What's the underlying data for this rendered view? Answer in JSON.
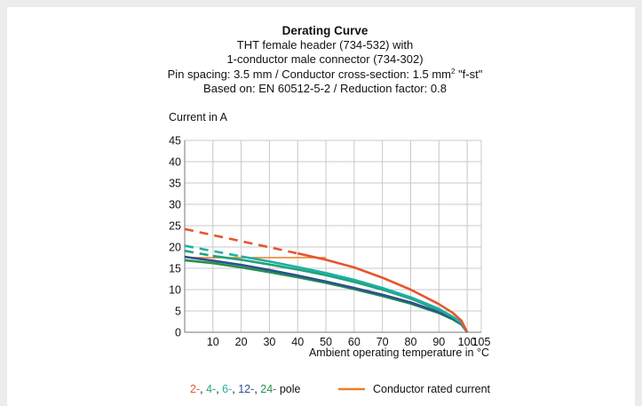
{
  "header": {
    "title": "Derating Curve",
    "line1": "THT female header (734-532) with",
    "line2": "1-conductor male connector (734-302)",
    "line3_prefix": "Pin spacing: 3.5 mm / Conductor cross-section: 1.5 mm",
    "line3_superscript": "2",
    "line3_suffix": " \"f-st\"",
    "line4": "Based on: EN 60512-5-2 / Reduction factor: 0.8"
  },
  "legend": {
    "poles_parts": [
      {
        "text": "2-",
        "color": "#e8542e"
      },
      {
        "text": ", ",
        "color": "#111111"
      },
      {
        "text": "4-",
        "color": "#1fa37a"
      },
      {
        "text": ", ",
        "color": "#111111"
      },
      {
        "text": "6-",
        "color": "#1eb0a4"
      },
      {
        "text": ", ",
        "color": "#111111"
      },
      {
        "text": "12-",
        "color": "#2e4f8f"
      },
      {
        "text": ", ",
        "color": "#111111"
      },
      {
        "text": "24-",
        "color": "#24914a"
      },
      {
        "text": " pole",
        "color": "#111111"
      }
    ],
    "rated_label": "Conductor rated current",
    "rated_color": "#f07d22"
  },
  "chart_data": {
    "type": "line",
    "ylabel": "Current in A",
    "xlabel": "Ambient operating temperature in °C",
    "xlim": [
      0,
      105
    ],
    "ylim": [
      0,
      45
    ],
    "x_ticks": [
      10,
      20,
      30,
      40,
      50,
      60,
      70,
      80,
      90,
      100,
      105
    ],
    "y_ticks": [
      0,
      5,
      10,
      15,
      20,
      25,
      30,
      35,
      40,
      45
    ],
    "grid": true,
    "series": [
      {
        "name": "2- pole",
        "color": "#e8542e",
        "dashed": {
          "x": [
            0,
            40
          ],
          "y": [
            24.2,
            18.5
          ]
        },
        "solid": {
          "x": [
            40,
            50,
            60,
            70,
            80,
            90,
            95,
            98,
            100
          ],
          "y": [
            18.5,
            17.0,
            15.2,
            12.8,
            10.0,
            6.6,
            4.5,
            2.7,
            0
          ]
        }
      },
      {
        "name": "4- pole",
        "color": "#1fa37a",
        "dashed": {
          "x": [
            0,
            10
          ],
          "y": [
            19.1,
            17.9
          ]
        },
        "solid": {
          "x": [
            10,
            20,
            30,
            40,
            50,
            60,
            70,
            80,
            90,
            95,
            98,
            100
          ],
          "y": [
            17.9,
            17.0,
            15.9,
            14.7,
            13.4,
            11.8,
            10.0,
            7.9,
            5.2,
            3.5,
            2.1,
            0
          ]
        }
      },
      {
        "name": "6- pole",
        "color": "#1eb0a4",
        "dashed": {
          "x": [
            0,
            20
          ],
          "y": [
            20.3,
            17.8
          ]
        },
        "solid": {
          "x": [
            20,
            30,
            40,
            50,
            60,
            70,
            80,
            90,
            95,
            98,
            100
          ],
          "y": [
            17.8,
            16.6,
            15.3,
            13.9,
            12.3,
            10.4,
            8.2,
            5.5,
            3.6,
            2.2,
            0
          ]
        }
      },
      {
        "name": "12- pole",
        "color": "#2e4f8f",
        "dashed": {
          "x": [
            0,
            2
          ],
          "y": [
            17.7,
            17.5
          ]
        },
        "solid": {
          "x": [
            2,
            10,
            20,
            30,
            40,
            50,
            60,
            70,
            80,
            90,
            95,
            98,
            100
          ],
          "y": [
            17.5,
            16.8,
            15.8,
            14.6,
            13.3,
            11.9,
            10.4,
            8.8,
            7.0,
            4.7,
            3.2,
            1.9,
            0
          ]
        }
      },
      {
        "name": "24- pole",
        "color": "#24914a",
        "dashed": {
          "x": [],
          "y": []
        },
        "solid": {
          "x": [
            0,
            10,
            20,
            30,
            40,
            50,
            60,
            70,
            80,
            90,
            95,
            98,
            100
          ],
          "y": [
            16.9,
            16.2,
            15.2,
            14.1,
            12.9,
            11.6,
            10.1,
            8.5,
            6.7,
            4.5,
            3.0,
            1.8,
            0
          ]
        }
      }
    ],
    "rated_current": {
      "name": "Conductor rated current",
      "color": "#f07d22",
      "x": [
        0,
        50
      ],
      "y": [
        17.5,
        17.5
      ]
    }
  }
}
